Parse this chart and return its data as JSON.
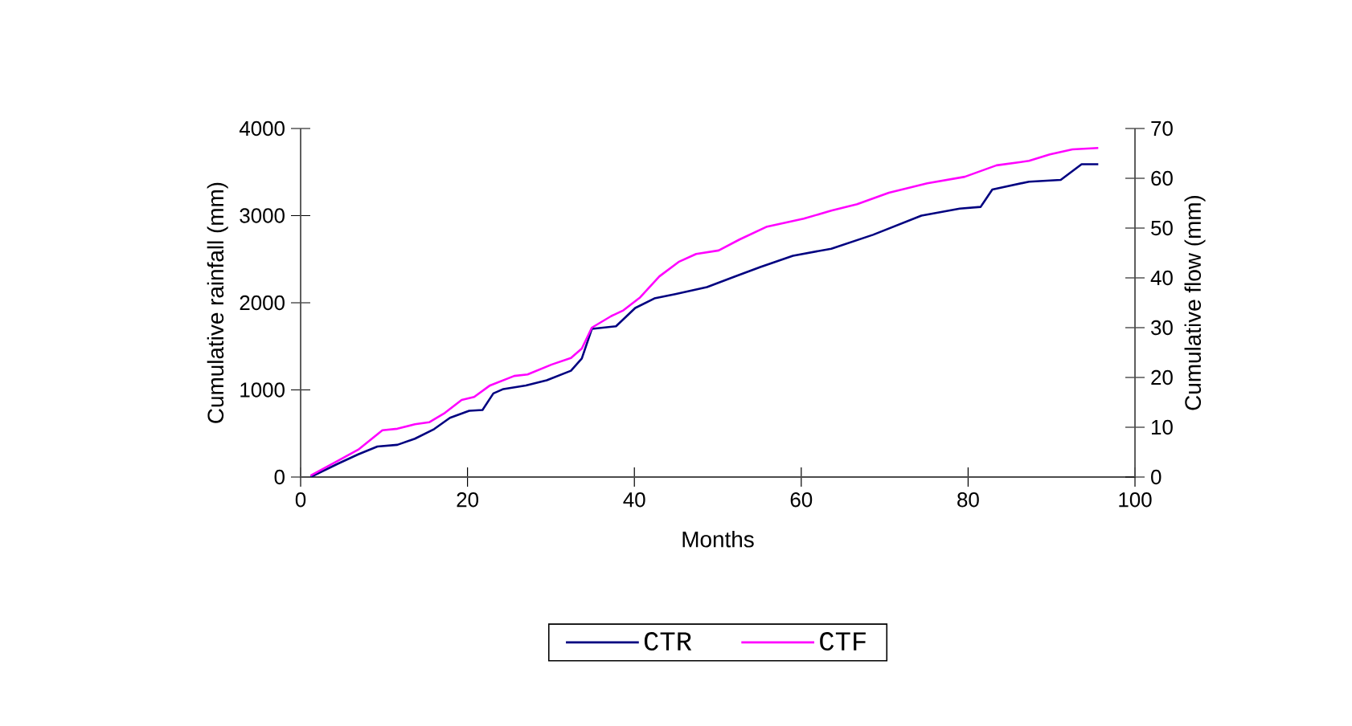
{
  "chart_data": {
    "type": "line",
    "xlabel": "Months",
    "ylabel": "Cumulative rainfall (mm)",
    "y2label": "Cumulative flow (mm)",
    "xlim": [
      0,
      100
    ],
    "xticks": [
      0,
      20,
      40,
      60,
      80,
      100
    ],
    "ylim": [
      0,
      4000
    ],
    "yticks": [
      0,
      1000,
      2000,
      3000,
      4000
    ],
    "y2lim": [
      0,
      70
    ],
    "y2ticks": [
      0,
      10,
      20,
      30,
      40,
      50,
      60,
      70
    ],
    "legend": "bottom",
    "grid": false,
    "marker": "none",
    "line_style": "solid",
    "series": [
      {
        "name": "CTR",
        "color": "#000080",
        "x": [
          1.2,
          4.4,
          6.9,
          9.2,
          11.6,
          13.7,
          16.0,
          17.9,
          20.2,
          21.8,
          23.1,
          24.3,
          27.0,
          29.5,
          32.4,
          33.7,
          34.9,
          37.8,
          40.1,
          42.4,
          44.9,
          48.7,
          52.0,
          55.1,
          59.0,
          63.6,
          68.6,
          74.4,
          79.0,
          81.5,
          82.9,
          87.3,
          91.1,
          93.6,
          95.6
        ],
        "values": [
          0,
          150,
          260,
          350,
          370,
          440,
          550,
          680,
          760,
          770,
          960,
          1010,
          1050,
          1110,
          1220,
          1360,
          1700,
          1730,
          1940,
          2050,
          2100,
          2180,
          2300,
          2410,
          2540,
          2620,
          2780,
          3000,
          3080,
          3100,
          3300,
          3390,
          3410,
          3590,
          3590
        ]
      },
      {
        "name": "CTF",
        "color": "#ff00ff",
        "axis": "y2",
        "x": [
          1.2,
          4.4,
          6.9,
          9.8,
          11.6,
          13.7,
          15.4,
          17.3,
          19.3,
          20.8,
          22.7,
          25.6,
          27.2,
          30.1,
          32.4,
          33.7,
          34.9,
          37.2,
          38.7,
          40.7,
          43.0,
          45.3,
          47.4,
          50.1,
          52.6,
          55.9,
          60.3,
          63.6,
          66.7,
          70.5,
          75.1,
          79.6,
          83.4,
          87.3,
          89.8,
          92.5,
          95.6
        ],
        "values": [
          0.3,
          3.2,
          5.5,
          9.4,
          9.7,
          10.6,
          11.0,
          12.9,
          15.5,
          16.1,
          18.4,
          20.3,
          20.6,
          22.6,
          23.9,
          25.8,
          30.0,
          32.3,
          33.5,
          36.1,
          40.3,
          43.2,
          44.8,
          45.5,
          47.7,
          50.3,
          51.9,
          53.5,
          54.8,
          57.1,
          59.0,
          60.3,
          62.6,
          63.5,
          64.8,
          65.8,
          66.1
        ]
      }
    ]
  }
}
